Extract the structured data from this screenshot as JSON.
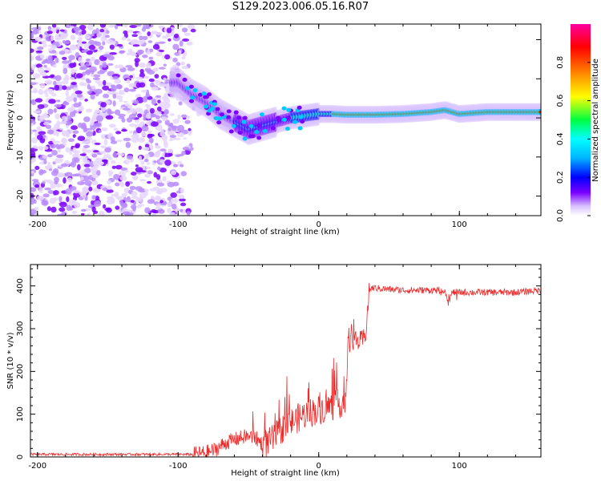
{
  "title": "S129.2023.006.05.16.R07",
  "chart_data": [
    {
      "type": "heatmap",
      "xlabel": "Height of straight line (km)",
      "ylabel": "Frequency (Hz)",
      "xlim": [
        -205,
        158
      ],
      "ylim": [
        -25,
        24
      ],
      "xticks": [
        -200,
        -100,
        0,
        100
      ],
      "yticks": [
        -20,
        -10,
        0,
        10,
        20
      ],
      "colorbar": {
        "label": "Normalized spectral amplitude",
        "range": [
          0,
          1
        ],
        "ticks": [
          "0.0",
          "0.2",
          "0.4",
          "0.6",
          "0.8"
        ],
        "colors": [
          "#ffffff",
          "#c9a6ff",
          "#7a00ff",
          "#0000ff",
          "#00b4ff",
          "#00ffff",
          "#00ff40",
          "#ffff00",
          "#ff8000",
          "#ff0000",
          "#ff00a0"
        ]
      },
      "ridge": [
        {
          "x": -100,
          "y": 9
        },
        {
          "x": -90,
          "y": 6
        },
        {
          "x": -80,
          "y": 4
        },
        {
          "x": -70,
          "y": 1
        },
        {
          "x": -60,
          "y": -1
        },
        {
          "x": -50,
          "y": -3
        },
        {
          "x": -40,
          "y": -2
        },
        {
          "x": -30,
          "y": -1
        },
        {
          "x": -20,
          "y": 0
        },
        {
          "x": -10,
          "y": 0.5
        },
        {
          "x": 0,
          "y": 1
        },
        {
          "x": 10,
          "y": 1
        },
        {
          "x": 20,
          "y": 0.8
        },
        {
          "x": 40,
          "y": 0.8
        },
        {
          "x": 60,
          "y": 1
        },
        {
          "x": 80,
          "y": 1.5
        },
        {
          "x": 90,
          "y": 2
        },
        {
          "x": 100,
          "y": 1
        },
        {
          "x": 120,
          "y": 1.5
        },
        {
          "x": 158,
          "y": 1.5
        }
      ]
    },
    {
      "type": "line",
      "xlabel": "Height of straight line (km)",
      "ylabel": "SNR (10 * v/v)",
      "xlim": [
        -205,
        158
      ],
      "ylim": [
        0,
        450
      ],
      "xticks": [
        -200,
        -100,
        0,
        100
      ],
      "yticks": [
        0,
        100,
        200,
        300,
        400
      ],
      "series": [
        {
          "color": "#ee2b2b",
          "x": [
            -205,
            -150,
            -110,
            -90,
            -80,
            -75,
            -70,
            -65,
            -60,
            -55,
            -50,
            -45,
            -40,
            -35,
            -30,
            -25,
            -20,
            -15,
            -10,
            -5,
            0,
            5,
            10,
            15,
            18,
            20,
            21,
            22,
            23,
            25,
            30,
            33,
            35,
            36,
            38,
            40,
            50,
            60,
            70,
            80,
            90,
            92,
            95,
            100,
            120,
            140,
            158
          ],
          "y": [
            6,
            6,
            6,
            6,
            10,
            15,
            25,
            35,
            40,
            45,
            50,
            45,
            30,
            35,
            50,
            70,
            80,
            90,
            100,
            105,
            110,
            115,
            120,
            125,
            130,
            150,
            300,
            260,
            290,
            270,
            270,
            280,
            350,
            390,
            395,
            395,
            392,
            390,
            390,
            390,
            390,
            360,
            385,
            385,
            385,
            385,
            390
          ]
        }
      ]
    }
  ]
}
